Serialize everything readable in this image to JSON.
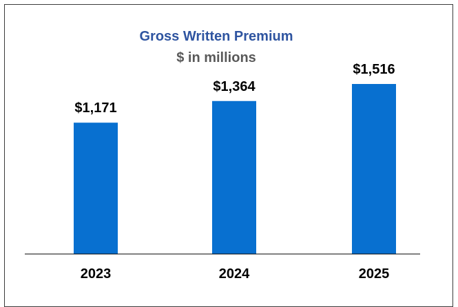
{
  "chart_data": {
    "type": "bar",
    "title": "Gross Written Premium",
    "subtitle": "$ in millions",
    "categories": [
      "2023",
      "2024",
      "2025"
    ],
    "values": [
      1171,
      1364,
      1516
    ],
    "value_labels": [
      "$1,171",
      "$1,364",
      "$1,516"
    ],
    "ylim": [
      0,
      1516
    ],
    "grid": false,
    "legend": "none",
    "colors": {
      "bar": "#0870d0",
      "title": "#2e54a0",
      "subtitle": "#595959",
      "axis": "#000000"
    }
  }
}
